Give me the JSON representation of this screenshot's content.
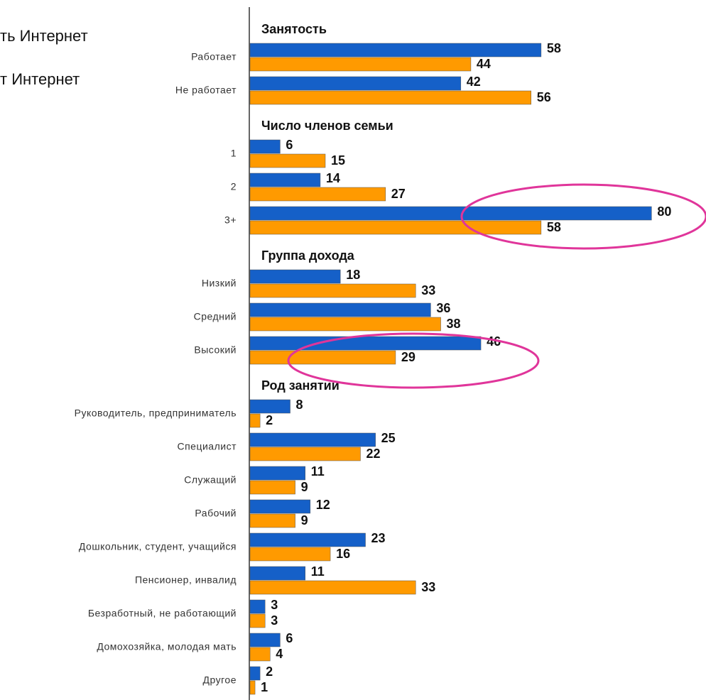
{
  "chart_data": {
    "type": "grouped-hbar",
    "groups": [
      {
        "title": "Занятость",
        "categories": [
          "Работает",
          "Не работает"
        ]
      },
      {
        "title": "Число членов семьи",
        "categories": [
          "1",
          "2",
          "3+"
        ]
      },
      {
        "title": "Группа дохода",
        "categories": [
          "Низкий",
          "Средний",
          "Высокий"
        ]
      },
      {
        "title": "Род занятии",
        "categories": [
          "Руководитель, предприниматель",
          "Специалист",
          "Служащий",
          "Рабочий",
          "Дошкольник, студент, учащийся",
          "Пенсионер, инвалид",
          "Безработный, не работающий",
          "Домохозяйка, молодая мать",
          "Другое"
        ]
      }
    ],
    "series": [
      {
        "name": "ть Интернет",
        "color": "#1560c8",
        "values": [
          58,
          42,
          6,
          14,
          80,
          18,
          36,
          46,
          8,
          25,
          11,
          12,
          23,
          11,
          3,
          6,
          2
        ]
      },
      {
        "name": "т Интернет",
        "color": "#ff9a00",
        "values": [
          44,
          56,
          15,
          27,
          58,
          33,
          38,
          29,
          2,
          22,
          9,
          9,
          16,
          33,
          3,
          4,
          1
        ]
      }
    ],
    "xlim": [
      0,
      90
    ]
  }
}
